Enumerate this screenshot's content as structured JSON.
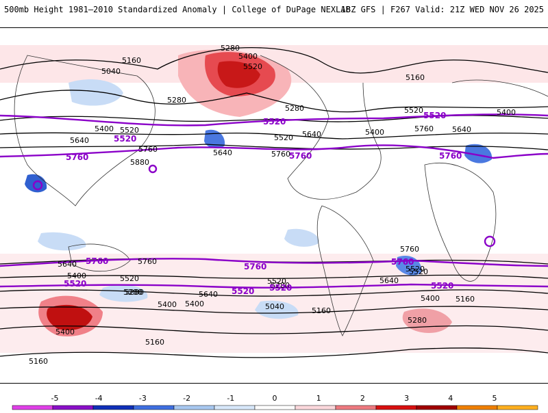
{
  "header": {
    "title": "500mb Height 1981–2010 Standardized Anomaly | College of DuPage NEXLAB",
    "run_info": "18Z GFS | F267 Valid: 21Z WED NOV 26 2025"
  },
  "contour_labels": {
    "black": [
      "5160",
      "5040",
      "5280",
      "5400",
      "5520",
      "5400",
      "5520",
      "5640",
      "5760",
      "5880",
      "5640",
      "5760",
      "5160",
      "5280",
      "5280",
      "5520",
      "5400",
      "5640",
      "5760",
      "5400",
      "5520",
      "5640",
      "5400",
      "5280",
      "5760",
      "5640",
      "5520",
      "5400",
      "5280",
      "5160",
      "5040",
      "5160",
      "5400",
      "5520",
      "5640",
      "5760",
      "5520",
      "5400",
      "5280",
      "5160",
      "5520",
      "5640",
      "5400",
      "5280",
      "5160"
    ],
    "purple": [
      "5520",
      "5760",
      "5520",
      "5760",
      "5520",
      "5760",
      "5760",
      "5520",
      "5760",
      "5760",
      "5520",
      "5520",
      "5760",
      "5520"
    ]
  },
  "colorbar": {
    "ticks": [
      "-5",
      "-4",
      "-3",
      "-2",
      "-1",
      "0",
      "1",
      "2",
      "3",
      "4",
      "5"
    ],
    "colors": [
      "#e040e8",
      "#8a10c8",
      "#1030b8",
      "#3f6fe0",
      "#a8c8f0",
      "#d8e8fa",
      "#ffffff",
      "#fbd8dc",
      "#ee7a80",
      "#d81010",
      "#a00000",
      "#f08000",
      "#ffb020"
    ]
  }
}
